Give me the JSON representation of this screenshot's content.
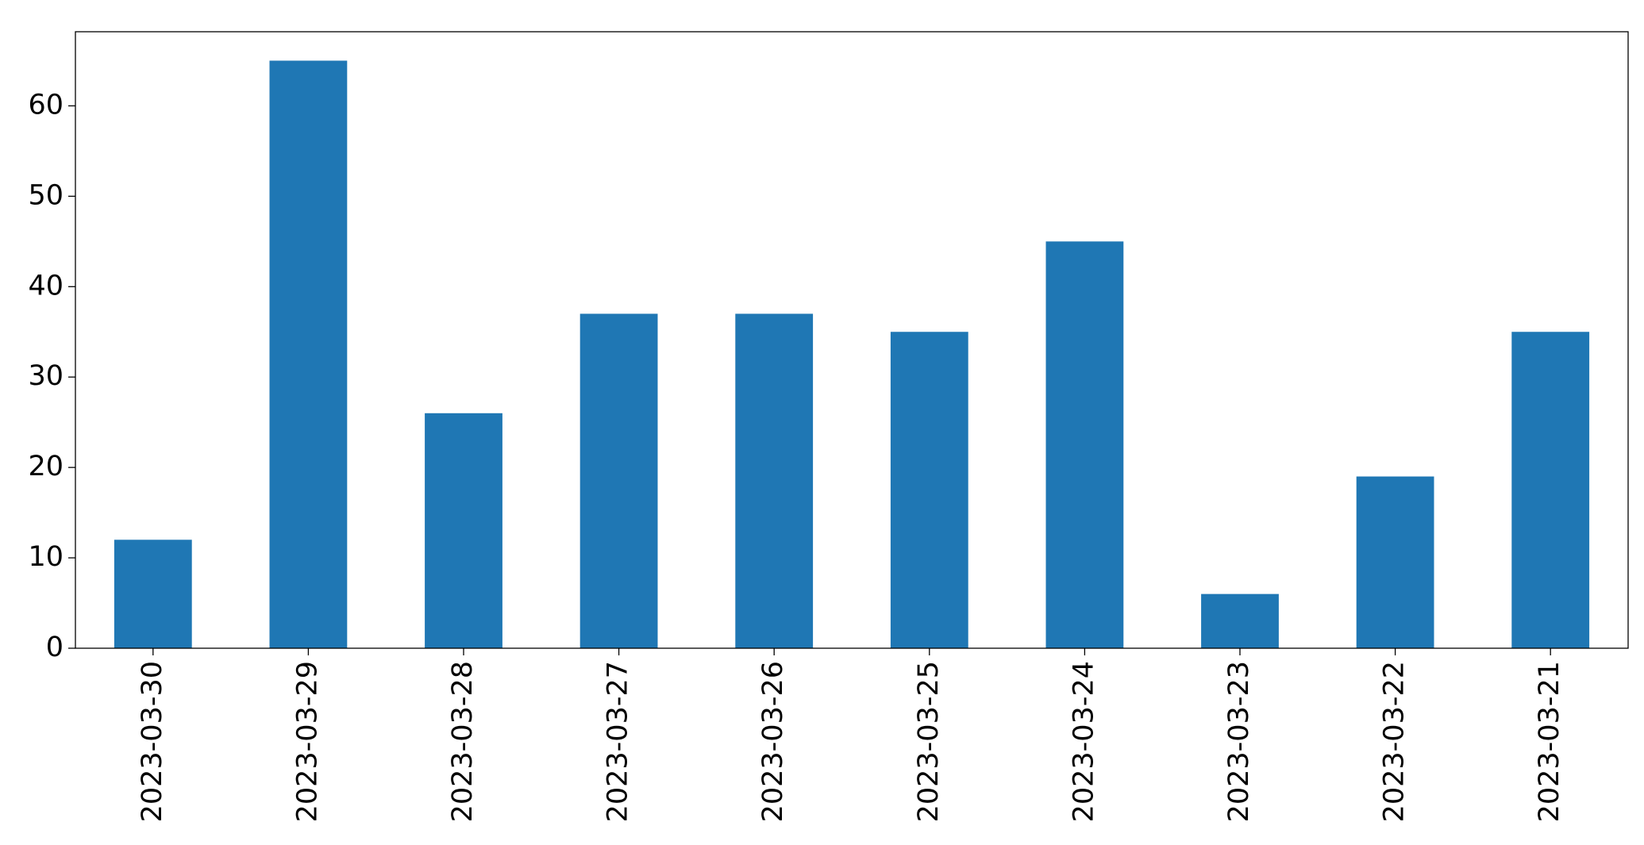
{
  "chart_data": {
    "type": "bar",
    "categories": [
      "2023-03-30",
      "2023-03-29",
      "2023-03-28",
      "2023-03-27",
      "2023-03-26",
      "2023-03-25",
      "2023-03-24",
      "2023-03-23",
      "2023-03-22",
      "2023-03-21"
    ],
    "values": [
      12,
      65,
      26,
      37,
      37,
      35,
      45,
      6,
      19,
      35
    ],
    "color": "#1f77b4",
    "ylim": [
      0,
      68.2
    ],
    "yticks": [
      0,
      10,
      20,
      30,
      40,
      50,
      60
    ],
    "grid": false
  }
}
